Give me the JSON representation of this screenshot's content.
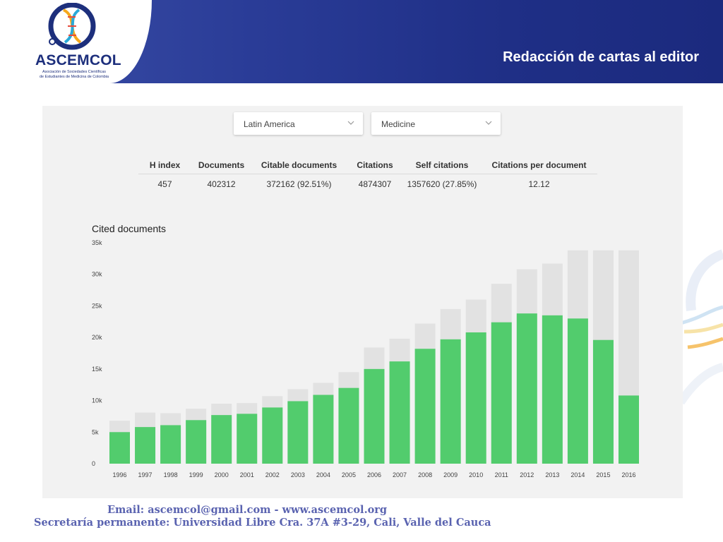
{
  "header": {
    "logo_name": "ASCEMCOL",
    "logo_tagline_1": "Asociación de Sociedades Científicas",
    "logo_tagline_2": "de Estudiantes de Medicina de Colombia",
    "title": "Redacción de cartas al editor",
    "brand_color": "#1f2f86"
  },
  "filters": {
    "region": "Latin America",
    "subject_area": "Medicine"
  },
  "stats": {
    "headers": [
      "H index",
      "Documents",
      "Citable documents",
      "Citations",
      "Self citations",
      "Citations per document"
    ],
    "values": [
      "457",
      "402312",
      "372162 (92.51%)",
      "4874307",
      "1357620 (27.85%)",
      "12.12"
    ]
  },
  "chart_data": {
    "type": "bar",
    "title": "Cited documents",
    "categories": [
      "1996",
      "1997",
      "1998",
      "1999",
      "2000",
      "2001",
      "2002",
      "2003",
      "2004",
      "2005",
      "2006",
      "2007",
      "2008",
      "2009",
      "2010",
      "2011",
      "2012",
      "2013",
      "2014",
      "2015",
      "2016"
    ],
    "series": [
      {
        "values": [
          5000,
          5800,
          6100,
          6900,
          7700,
          7900,
          8900,
          9900,
          10900,
          12000,
          15000,
          16200,
          18200,
          19700,
          20800,
          22400,
          23800,
          23500,
          23000,
          19600,
          10800
        ],
        "color": "#52cc6d"
      },
      {
        "values": [
          6800,
          8100,
          8000,
          8700,
          9500,
          9600,
          10700,
          11800,
          12800,
          14500,
          18400,
          19800,
          22200,
          24500,
          26000,
          28500,
          30800,
          31700,
          33800,
          33800,
          33800
        ],
        "color": "#e2e2e2"
      }
    ],
    "stacking": "overlay",
    "ylim": [
      0,
      35000
    ],
    "y_ticks": [
      "0",
      "5k",
      "10k",
      "15k",
      "20k",
      "25k",
      "30k",
      "35k"
    ],
    "grid": false
  },
  "footer": {
    "contact": "Email: ascemcol@gmail.com  - www.ascemcol.org",
    "address": "Secretaría permanente: Universidad Libre Cra. 37A #3-29, Cali, Valle del Cauca"
  }
}
